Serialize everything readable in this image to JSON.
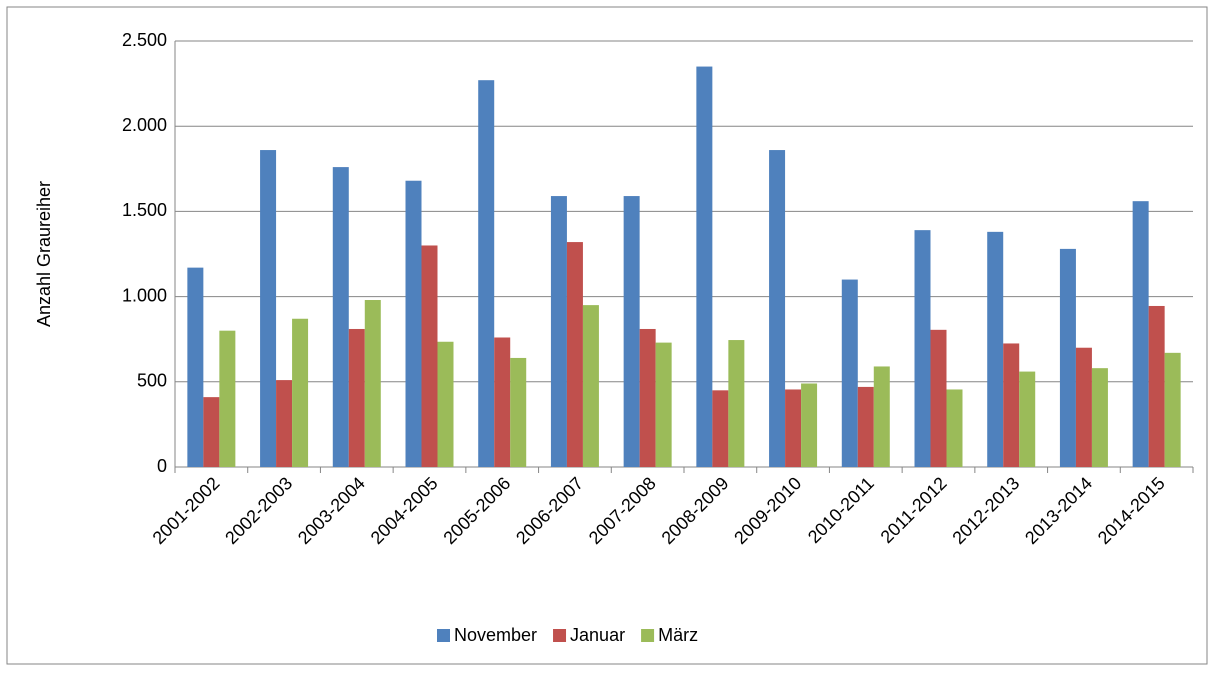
{
  "chart_data": {
    "type": "bar",
    "y_label": "Anzahl Graureiher",
    "categories": [
      "2001-2002",
      "2002-2003",
      "2003-2004",
      "2004-2005",
      "2005-2006",
      "2006-2007",
      "2007-2008",
      "2008-2009",
      "2009-2010",
      "2010-2011",
      "2011-2012",
      "2012-2013",
      "2013-2014",
      "2014-2015"
    ],
    "series": [
      {
        "name": "November",
        "color": "#4f81bd",
        "values": [
          1170,
          1860,
          1760,
          1680,
          2270,
          1590,
          1590,
          2350,
          1860,
          1100,
          1390,
          1380,
          1280,
          1560
        ]
      },
      {
        "name": "Januar",
        "color": "#c0504d",
        "values": [
          410,
          510,
          810,
          1300,
          760,
          1320,
          810,
          450,
          455,
          470,
          805,
          725,
          700,
          945
        ]
      },
      {
        "name": "März",
        "color": "#9bbb59",
        "values": [
          800,
          870,
          980,
          735,
          640,
          950,
          730,
          745,
          490,
          590,
          455,
          560,
          580,
          670
        ]
      }
    ],
    "ylim": [
      0,
      2500
    ],
    "yticks": [
      0,
      500,
      {
        "value": 1000,
        "label": "1.000"
      },
      {
        "value": 1500,
        "label": "1.500"
      },
      {
        "value": 2000,
        "label": "2.000"
      },
      {
        "value": 2500,
        "label": "2.500"
      }
    ],
    "grid": true,
    "legend": "bottom"
  }
}
